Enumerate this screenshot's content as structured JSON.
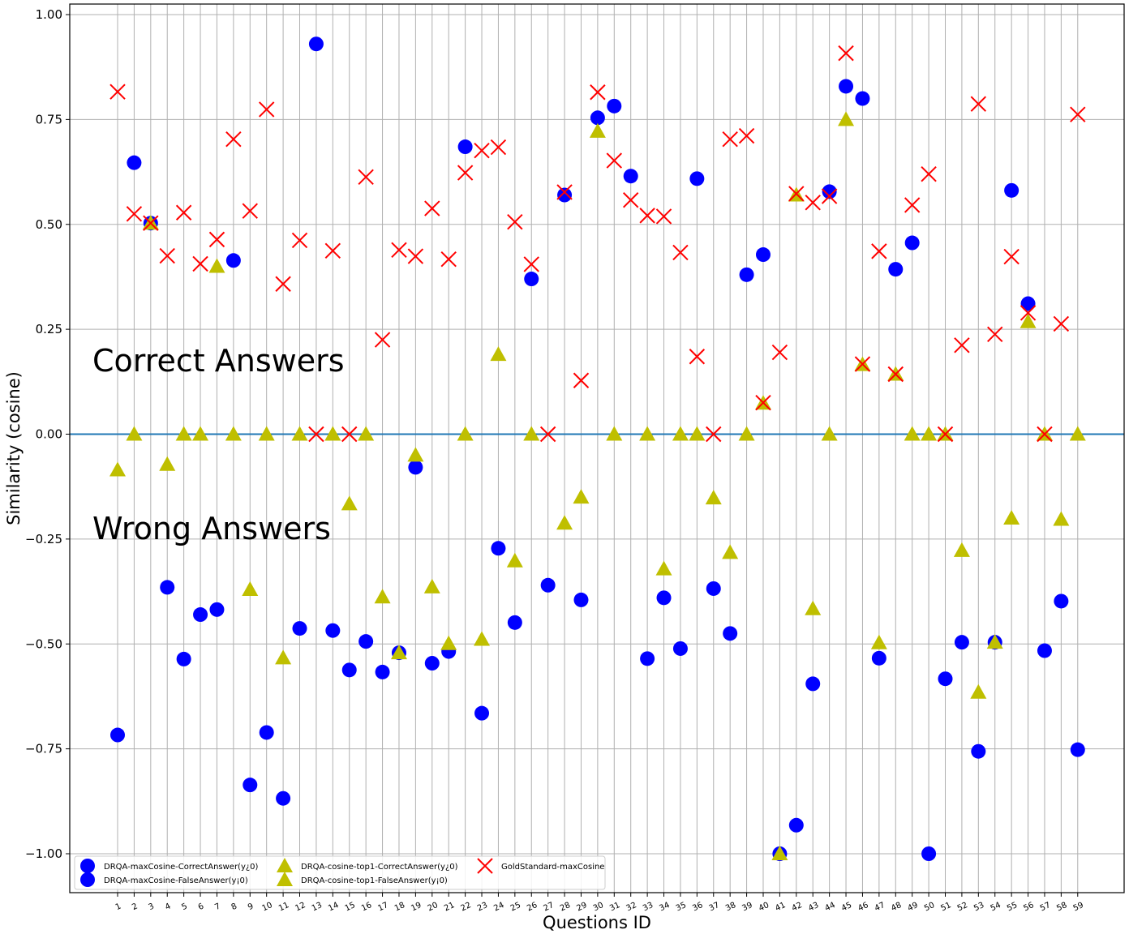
{
  "chart_data": {
    "type": "scatter",
    "xlabel": "Questions ID",
    "ylabel": "Similarity (cosine)",
    "ylim": [
      -1.0,
      1.0
    ],
    "yticks": [
      "1.00",
      "0.75",
      "0.50",
      "0.25",
      "0.00",
      "−0.25",
      "−0.50",
      "−0.75",
      "−1.00"
    ],
    "ytick_values": [
      1.0,
      0.75,
      0.5,
      0.25,
      0.0,
      -0.25,
      -0.5,
      -0.75,
      -1.0
    ],
    "categories": [
      "1",
      "2",
      "3",
      "4",
      "5",
      "6",
      "7",
      "8",
      "9",
      "10",
      "11",
      "12",
      "13",
      "14",
      "15",
      "16",
      "17",
      "18",
      "19",
      "20",
      "21",
      "22",
      "23",
      "24",
      "25",
      "26",
      "27",
      "28",
      "29",
      "30",
      "31",
      "32",
      "33",
      "34",
      "35",
      "36",
      "37",
      "38",
      "39",
      "40",
      "41",
      "42",
      "43",
      "44",
      "45",
      "46",
      "47",
      "48",
      "49",
      "50",
      "51",
      "52",
      "53",
      "54",
      "55",
      "56",
      "57",
      "58",
      "59"
    ],
    "grid": true,
    "zero_line": 0.0,
    "annotations": [
      {
        "text": "Correct Answers",
        "y": 0.175
      },
      {
        "text": "Wrong Answers",
        "y": -0.225
      }
    ],
    "legend_position": "lower-left",
    "colors": {
      "blue": "#0000ff",
      "olive": "#bfbf00",
      "red": "#ff0000",
      "zeroline": "#1f77b4",
      "grid": "#b0b0b0"
    },
    "series": [
      {
        "name": "DRQA-maxCosine-CorrectAnswer(y¿0)",
        "marker": "circle",
        "color": "#0000ff",
        "values": [
          null,
          0.647,
          0.503,
          null,
          null,
          null,
          null,
          0.414,
          null,
          null,
          null,
          null,
          0.93,
          null,
          null,
          null,
          null,
          null,
          null,
          null,
          null,
          0.685,
          null,
          null,
          null,
          0.37,
          null,
          0.57,
          null,
          0.754,
          0.782,
          0.615,
          null,
          null,
          null,
          0.609,
          null,
          null,
          0.38,
          0.428,
          null,
          null,
          null,
          0.578,
          0.829,
          0.8,
          null,
          0.393,
          0.456,
          null,
          null,
          null,
          null,
          null,
          0.581,
          0.311,
          null,
          null,
          null
        ]
      },
      {
        "name": "DRQA-maxCosine-FalseAnswer(y¡0)",
        "marker": "circle",
        "color": "#0000ff",
        "values": [
          -0.717,
          null,
          null,
          -0.365,
          -0.536,
          -0.43,
          -0.418,
          null,
          -0.836,
          -0.711,
          -0.868,
          -0.463,
          null,
          -0.468,
          -0.562,
          -0.494,
          -0.567,
          -0.521,
          -0.079,
          -0.546,
          -0.518,
          null,
          -0.665,
          -0.272,
          -0.449,
          null,
          -0.36,
          null,
          -0.395,
          null,
          null,
          null,
          -0.535,
          -0.39,
          -0.511,
          null,
          -0.368,
          -0.475,
          null,
          null,
          -1.0,
          -0.932,
          -0.595,
          null,
          null,
          null,
          -0.534,
          null,
          null,
          -1.0,
          -0.583,
          -0.496,
          -0.756,
          -0.496,
          null,
          null,
          -0.516,
          -0.398,
          -0.752
        ]
      },
      {
        "name": "DRQA-cosine-top1-CorrectAnswer(y¿0)",
        "marker": "triangle",
        "color": "#bfbf00",
        "values": [
          null,
          0.0,
          0.503,
          null,
          0.0,
          0.0,
          0.4,
          0.0,
          null,
          0.0,
          null,
          0.0,
          null,
          0.0,
          null,
          0.0,
          null,
          null,
          null,
          null,
          null,
          0.0,
          null,
          0.19,
          null,
          0.0,
          null,
          null,
          null,
          0.722,
          0.0,
          null,
          0.0,
          null,
          0.0,
          0.0,
          null,
          null,
          0.0,
          0.074,
          null,
          0.57,
          null,
          0.0,
          0.75,
          0.166,
          null,
          0.143,
          0.0,
          0.0,
          0.0,
          null,
          null,
          null,
          null,
          0.268,
          0.0,
          null,
          0.0
        ]
      },
      {
        "name": "DRQA-cosine-top1-FalseAnswer(y¡0)",
        "marker": "triangle",
        "color": "#bfbf00",
        "values": [
          -0.085,
          null,
          null,
          -0.072,
          null,
          null,
          null,
          null,
          -0.37,
          null,
          -0.533,
          null,
          null,
          null,
          -0.166,
          null,
          -0.388,
          -0.521,
          -0.05,
          -0.364,
          -0.499,
          null,
          -0.489,
          null,
          -0.302,
          null,
          null,
          -0.212,
          -0.15,
          null,
          null,
          null,
          null,
          -0.321,
          null,
          null,
          -0.152,
          -0.282,
          null,
          null,
          -1.0,
          null,
          -0.416,
          null,
          null,
          null,
          -0.497,
          null,
          null,
          null,
          null,
          -0.277,
          -0.615,
          -0.496,
          -0.2,
          null,
          null,
          -0.203,
          null
        ]
      },
      {
        "name": "GoldStandard-maxCosine",
        "marker": "x",
        "color": "#ff0000",
        "values": [
          0.816,
          0.525,
          0.503,
          0.425,
          0.528,
          0.406,
          0.464,
          0.703,
          0.532,
          0.774,
          0.358,
          0.462,
          0.0,
          0.437,
          0.0,
          0.613,
          0.225,
          0.439,
          0.424,
          0.538,
          0.417,
          0.623,
          0.676,
          0.684,
          0.506,
          0.405,
          0.0,
          0.577,
          0.128,
          0.815,
          0.652,
          0.558,
          0.521,
          0.519,
          0.433,
          0.185,
          0.0,
          0.703,
          0.711,
          0.075,
          0.195,
          0.573,
          0.552,
          0.567,
          0.908,
          0.167,
          0.436,
          0.143,
          0.546,
          0.62,
          0.0,
          0.212,
          0.787,
          0.238,
          0.423,
          0.289,
          0.0,
          0.263,
          0.762
        ]
      }
    ]
  }
}
